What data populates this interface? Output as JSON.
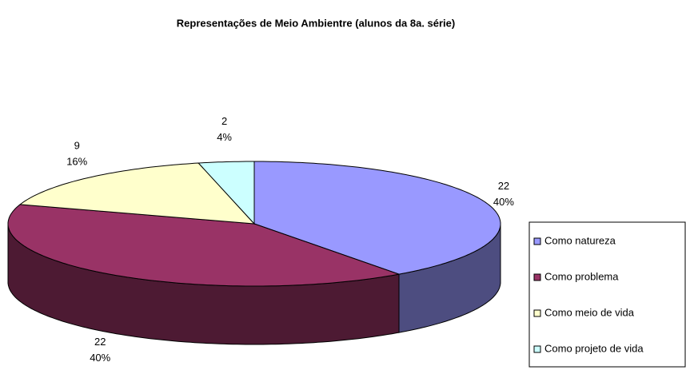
{
  "chart_data": {
    "type": "pie3d",
    "title": "Representações de Meio Ambientre (alunos da 8a. série)",
    "categories": [
      "Como natureza",
      "Como problema",
      "Como meio de vida",
      "Como projeto de vida"
    ],
    "values": [
      22,
      22,
      9,
      2
    ],
    "value_labels": [
      "40%",
      "40%",
      "16%",
      "4%"
    ],
    "colors": [
      "#9999ff",
      "#993366",
      "#ffffcc",
      "#ccffff"
    ],
    "legend": "right"
  }
}
